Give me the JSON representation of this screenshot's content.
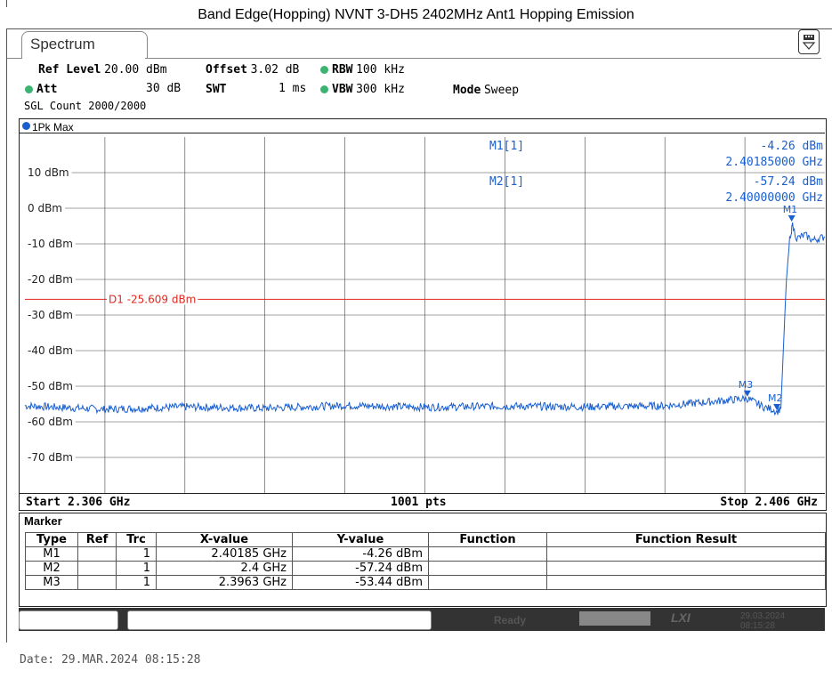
{
  "title": "Band Edge(Hopping) NVNT 3-DH5 2402MHz Ant1 Hopping Emission",
  "tab_label": "Spectrum",
  "display_icon": "display-config-icon",
  "settings": {
    "ref_level_label": "Ref Level",
    "ref_level_value": "20.00 dBm",
    "offset_label": "Offset",
    "offset_value": "3.02 dB",
    "rbw_label": "RBW",
    "rbw_value": "100 kHz",
    "att_label": "Att",
    "att_value": "30 dB",
    "swt_label": "SWT",
    "swt_value": "1 ms",
    "vbw_label": "VBW",
    "vbw_value": "300 kHz",
    "mode_label": "Mode",
    "mode_value": "Sweep",
    "sgl_count": "SGL Count 2000/2000",
    "indicator_color": "#3cb371"
  },
  "trace_label": "1Pk Max",
  "trace_color": "#1a5fd0",
  "display_line": {
    "label": "D1  -25.609 dBm",
    "level": -25.609,
    "color": "#e0281e"
  },
  "marker_readout": [
    {
      "name": "M1[1]",
      "value": "-4.26 dBm",
      "freq": "2.40185000 GHz"
    },
    {
      "name": "M2[1]",
      "value": "-57.24 dBm",
      "freq": "2.40000000 GHz"
    }
  ],
  "footer": {
    "start": "Start 2.306 GHz",
    "points": "1001 pts",
    "stop": "Stop 2.406 GHz"
  },
  "marker_table": {
    "title": "Marker",
    "headers": [
      "Type",
      "Ref",
      "Trc",
      "X-value",
      "Y-value",
      "Function",
      "Function Result"
    ],
    "rows": [
      [
        "M1",
        "",
        "1",
        "2.40185 GHz",
        "-4.26 dBm",
        "",
        ""
      ],
      [
        "M2",
        "",
        "1",
        "2.4 GHz",
        "-57.24 dBm",
        "",
        ""
      ],
      [
        "M3",
        "",
        "1",
        "2.3963 GHz",
        "-53.44 dBm",
        "",
        ""
      ]
    ]
  },
  "status": {
    "ready": "Ready",
    "lxi": "LXI",
    "date": "29.03.2024",
    "time": "08:15:28"
  },
  "date_line": "Date: 29.MAR.2024  08:15:28",
  "chart_data": {
    "type": "line",
    "x_unit": "GHz",
    "y_unit": "dBm",
    "xlim": [
      2.306,
      2.406
    ],
    "ylim": [
      -80,
      20
    ],
    "y_ticks": [
      {
        "label": "10 dBm",
        "value": 10
      },
      {
        "label": "0 dBm",
        "value": 0
      },
      {
        "label": "-10 dBm",
        "value": -10
      },
      {
        "label": "-20 dBm",
        "value": -20
      },
      {
        "label": "-30 dBm",
        "value": -30
      },
      {
        "label": "-40 dBm",
        "value": -40
      },
      {
        "label": "-50 dBm",
        "value": -50
      },
      {
        "label": "-60 dBm",
        "value": -60
      },
      {
        "label": "-70 dBm",
        "value": -70
      }
    ],
    "grid": true,
    "series": [
      {
        "x": [
          2.306,
          2.316,
          2.326,
          2.336,
          2.346,
          2.356,
          2.366,
          2.376,
          2.386,
          2.3963,
          2.3985,
          2.3995,
          2.4,
          2.4005,
          2.4008,
          2.4012,
          2.4016,
          2.4018,
          2.40185,
          2.4025,
          2.4035,
          2.4045,
          2.406
        ],
        "y": [
          -55.5,
          -56.5,
          -55.8,
          -56.2,
          -55.4,
          -55.9,
          -55.6,
          -55.8,
          -55.5,
          -53.44,
          -56.0,
          -56.5,
          -57.24,
          -56.0,
          -40,
          -20,
          -9,
          -8,
          -4.26,
          -8.5,
          -7.5,
          -9,
          -8
        ]
      }
    ],
    "markers": [
      {
        "label": "M1",
        "x": 2.40185,
        "y": -4.26
      },
      {
        "label": "M2",
        "x": 2.4,
        "y": -57.24
      },
      {
        "label": "M3",
        "x": 2.3963,
        "y": -53.44
      }
    ]
  }
}
